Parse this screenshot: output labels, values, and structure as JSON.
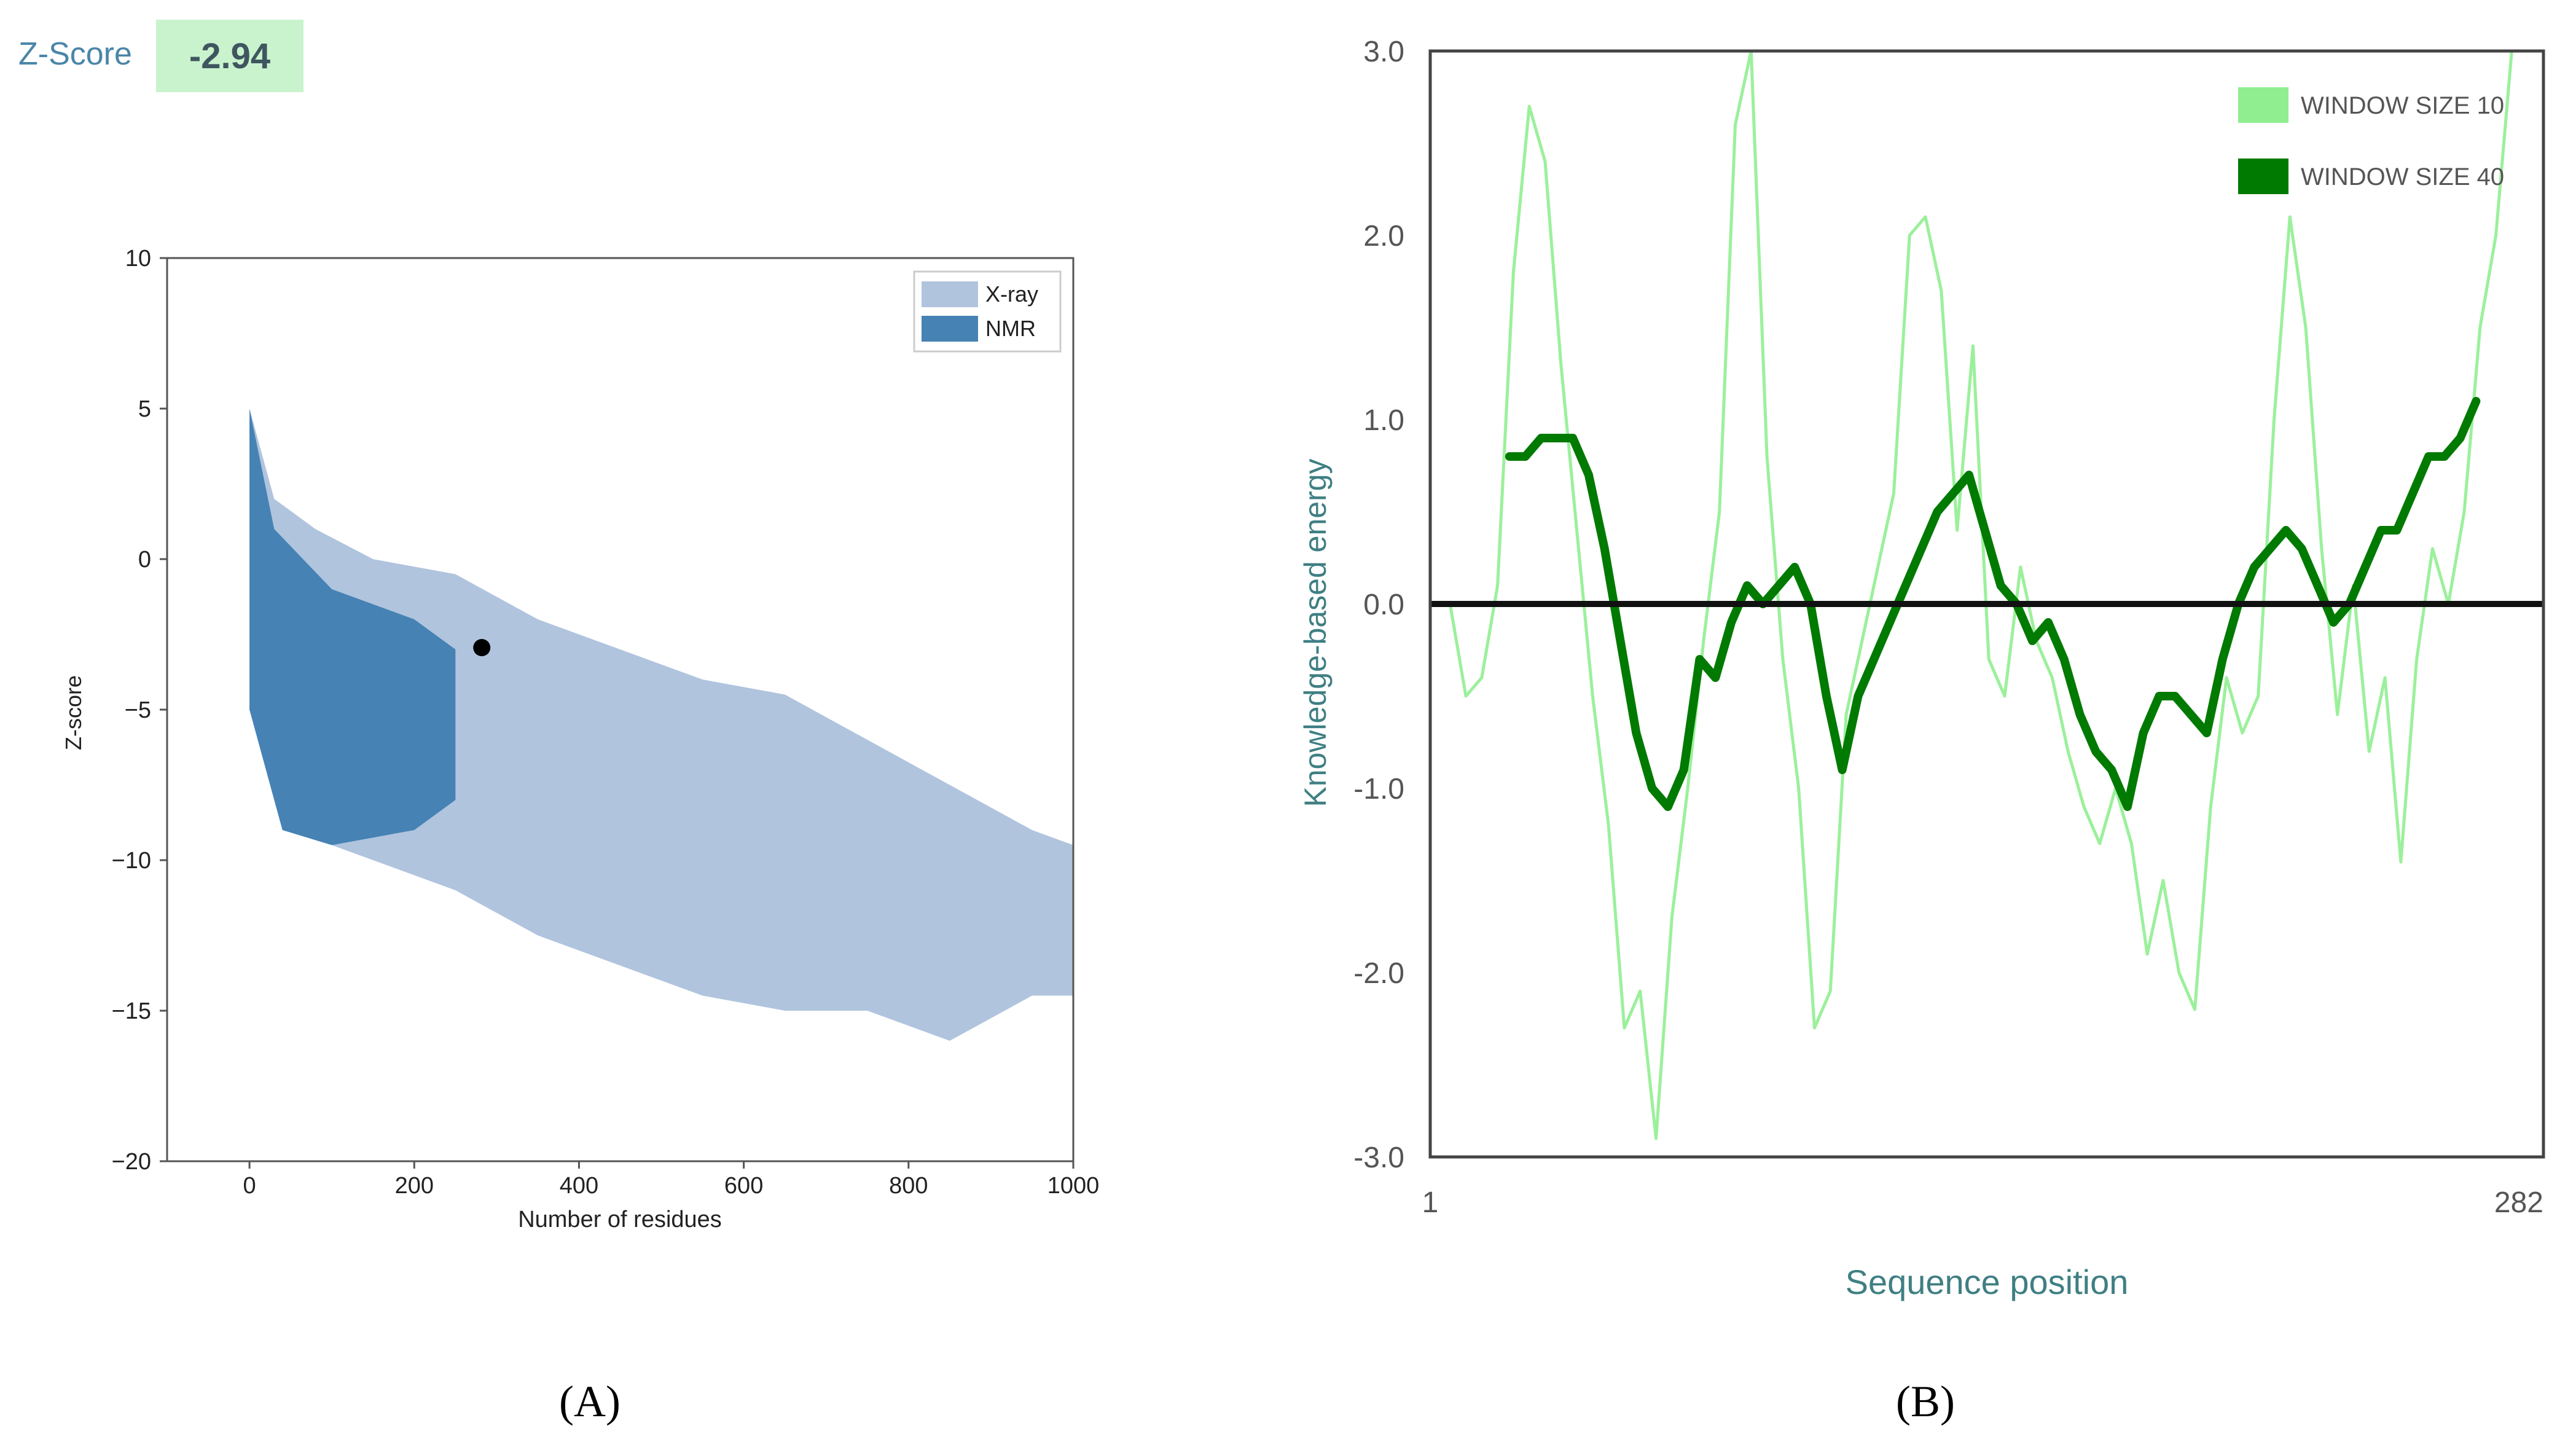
{
  "header": {
    "zscore_label": "Z-Score",
    "zscore_value": "-2.94"
  },
  "panels": {
    "a_label": "(A)",
    "b_label": "(B)"
  },
  "colors": {
    "xray": "#b0c4de",
    "nmr": "#4682b4",
    "point": "#000000",
    "w10": "#90ee90",
    "w40": "#007a00",
    "axis_text_teal": "#3f7f83",
    "zbox": "#c9f3cd"
  },
  "chart_data": [
    {
      "type": "scatter",
      "title": "",
      "xlabel": "Number of residues",
      "ylabel": "Z-score",
      "xlim": [
        -100,
        1000
      ],
      "ylim": [
        -20,
        10
      ],
      "xticks": [
        "0",
        "200",
        "400",
        "600",
        "800",
        "1000"
      ],
      "yticks": [
        "10",
        "5",
        "0",
        "−5",
        "−10",
        "−15",
        "−20"
      ],
      "legend": {
        "entries": [
          "X-ray",
          "NMR"
        ],
        "position": "top-right"
      },
      "series": [
        {
          "name": "X-ray",
          "upper_envelope": [
            [
              0,
              5
            ],
            [
              30,
              2
            ],
            [
              80,
              1
            ],
            [
              150,
              0
            ],
            [
              250,
              -0.5
            ],
            [
              350,
              -2
            ],
            [
              450,
              -3
            ],
            [
              550,
              -4
            ],
            [
              650,
              -4.5
            ],
            [
              750,
              -6
            ],
            [
              850,
              -7.5
            ],
            [
              950,
              -9
            ],
            [
              1000,
              -9.5
            ]
          ],
          "lower_envelope": [
            [
              0,
              -5
            ],
            [
              50,
              -9
            ],
            [
              150,
              -10
            ],
            [
              250,
              -11
            ],
            [
              350,
              -12.5
            ],
            [
              450,
              -13.5
            ],
            [
              550,
              -14.5
            ],
            [
              650,
              -15
            ],
            [
              750,
              -15
            ],
            [
              850,
              -16
            ],
            [
              950,
              -14.5
            ],
            [
              1000,
              -14.5
            ]
          ]
        },
        {
          "name": "NMR",
          "upper_envelope": [
            [
              0,
              5
            ],
            [
              30,
              1
            ],
            [
              100,
              -1
            ],
            [
              200,
              -2
            ],
            [
              250,
              -3
            ]
          ],
          "lower_envelope": [
            [
              0,
              -5
            ],
            [
              40,
              -9
            ],
            [
              100,
              -9.5
            ],
            [
              200,
              -9
            ],
            [
              250,
              -8
            ]
          ]
        }
      ],
      "highlight_point": {
        "x": 282,
        "y": -2.94
      }
    },
    {
      "type": "line",
      "title": "",
      "xlabel": "Sequence position",
      "ylabel": "Knowledge-based energy",
      "xlim": [
        1,
        282
      ],
      "ylim": [
        -3.0,
        3.0
      ],
      "xticks": [
        "1",
        "282"
      ],
      "yticks": [
        "3.0",
        "2.0",
        "1.0",
        "0.0",
        "-1.0",
        "-2.0",
        "-3.0"
      ],
      "legend": {
        "entries": [
          "WINDOW SIZE 10",
          "WINDOW SIZE 40"
        ],
        "position": "top-right"
      },
      "series": [
        {
          "name": "WINDOW SIZE 10",
          "x": [
            6,
            10,
            14,
            18,
            22,
            26,
            30,
            34,
            38,
            42,
            46,
            50,
            54,
            58,
            62,
            66,
            70,
            74,
            78,
            82,
            86,
            90,
            94,
            98,
            102,
            106,
            110,
            114,
            118,
            122,
            126,
            130,
            134,
            138,
            142,
            146,
            150,
            154,
            158,
            162,
            166,
            170,
            174,
            178,
            182,
            186,
            190,
            194,
            198,
            202,
            206,
            210,
            214,
            218,
            222,
            226,
            230,
            234,
            238,
            242,
            246,
            250,
            254,
            258,
            262,
            266,
            270,
            274,
            278,
            282
          ],
          "values": [
            0.0,
            -0.5,
            -0.4,
            0.1,
            1.8,
            2.7,
            2.4,
            1.3,
            0.4,
            -0.5,
            -1.2,
            -2.3,
            -2.1,
            -2.9,
            -1.7,
            -1.0,
            -0.2,
            0.5,
            2.6,
            3.0,
            0.8,
            -0.3,
            -1.0,
            -2.3,
            -2.1,
            -0.6,
            -0.2,
            0.2,
            0.6,
            2.0,
            2.1,
            1.7,
            0.4,
            1.4,
            -0.3,
            -0.5,
            0.2,
            -0.2,
            -0.4,
            -0.8,
            -1.1,
            -1.3,
            -1.0,
            -1.3,
            -1.9,
            -1.5,
            -2.0,
            -2.2,
            -1.1,
            -0.4,
            -0.7,
            -0.5,
            1.0,
            2.1,
            1.5,
            0.3,
            -0.6,
            0.1,
            -0.8,
            -0.4,
            -1.4,
            -0.3,
            0.3,
            0.0,
            0.5,
            1.5,
            2.0,
            3.0,
            3.0,
            3.0
          ]
        },
        {
          "name": "WINDOW SIZE 40",
          "x": [
            21,
            25,
            29,
            33,
            37,
            41,
            45,
            49,
            53,
            57,
            61,
            65,
            69,
            73,
            77,
            81,
            85,
            89,
            93,
            97,
            101,
            105,
            109,
            113,
            117,
            121,
            125,
            129,
            133,
            137,
            141,
            145,
            149,
            153,
            157,
            161,
            165,
            169,
            173,
            177,
            181,
            185,
            189,
            193,
            197,
            201,
            205,
            209,
            213,
            217,
            221,
            225,
            229,
            233,
            237,
            241,
            245,
            249,
            253,
            257,
            261,
            265
          ],
          "values": [
            0.8,
            0.8,
            0.9,
            0.9,
            0.9,
            0.7,
            0.3,
            -0.2,
            -0.7,
            -1.0,
            -1.1,
            -0.9,
            -0.3,
            -0.4,
            -0.1,
            0.1,
            0.0,
            0.1,
            0.2,
            0.0,
            -0.5,
            -0.9,
            -0.5,
            -0.3,
            -0.1,
            0.1,
            0.3,
            0.5,
            0.6,
            0.7,
            0.4,
            0.1,
            0.0,
            -0.2,
            -0.1,
            -0.3,
            -0.6,
            -0.8,
            -0.9,
            -1.1,
            -0.7,
            -0.5,
            -0.5,
            -0.6,
            -0.7,
            -0.3,
            0.0,
            0.2,
            0.3,
            0.4,
            0.3,
            0.1,
            -0.1,
            0.0,
            0.2,
            0.4,
            0.4,
            0.6,
            0.8,
            0.8,
            0.9,
            1.1
          ]
        }
      ],
      "reference_line": {
        "y": 0.0
      }
    }
  ]
}
